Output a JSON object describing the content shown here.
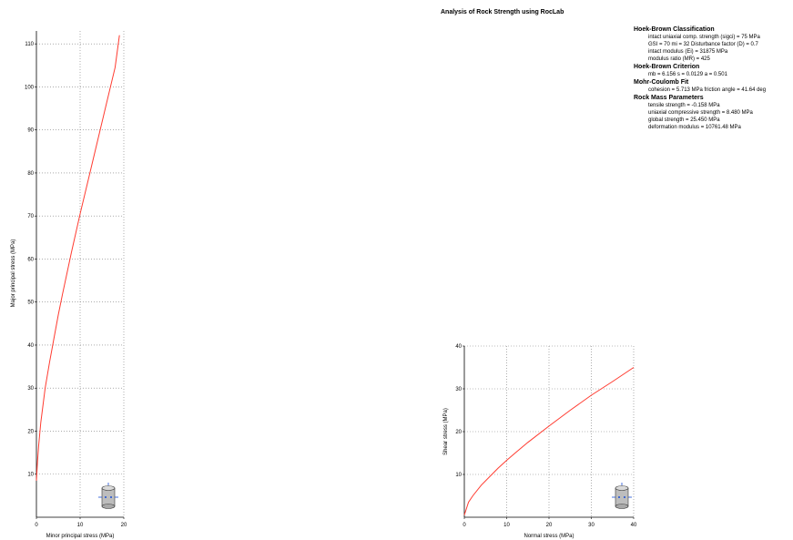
{
  "title": "Analysis of Rock Strength using RocLab",
  "info": {
    "sections": [
      {
        "title": "Hoek-Brown Classification",
        "lines": [
          "intact uniaxial comp. strength (sigci) = 75 MPa",
          "GSI = 70    mi = 32    Disturbance factor (D) = 0.7",
          "intact modulus (Ei) = 31875 MPa",
          "modulus ratio (MR) = 425"
        ]
      },
      {
        "title": "Hoek-Brown Criterion",
        "lines": [
          "mb = 6.156    s = 0.0129    a = 0.501"
        ]
      },
      {
        "title": "Mohr-Coulomb Fit",
        "lines": [
          "cohesion = 5.713 MPa    friction angle = 41.64 deg"
        ]
      },
      {
        "title": "Rock Mass Parameters",
        "lines": [
          "tensile strength = -0.158 MPa",
          "uniaxial compressive strength = 8.480 MPa",
          "global strength = 25.450 MPa",
          "deformation modulus = 10761.48 MPa"
        ]
      }
    ]
  },
  "colors": {
    "curve": "#ff3b30",
    "grid": "#7a7a7a",
    "icon_glyph": "#1a4fd6"
  },
  "icons": {
    "chart1": "triaxial-cylinder-icon",
    "chart2": "shear-cylinder-icon"
  },
  "chart_data": [
    {
      "type": "line",
      "title": "",
      "xlabel": "Minor principal stress (MPa)",
      "ylabel": "Major principal stress (MPa)",
      "xlim": [
        0,
        20
      ],
      "ylim": [
        0,
        113
      ],
      "xticks": [
        0,
        10,
        20
      ],
      "yticks": [
        10,
        20,
        30,
        40,
        50,
        60,
        70,
        80,
        90,
        100,
        110
      ],
      "grid": true,
      "series": [
        {
          "x": [
            0,
            0.25,
            0.5,
            1,
            2,
            3,
            4,
            5,
            6,
            8,
            10,
            12,
            14,
            16,
            18,
            19
          ],
          "y": [
            8.5,
            13,
            16.5,
            22,
            30,
            36,
            41.5,
            47,
            52,
            61.5,
            70.5,
            79,
            87.5,
            96,
            104.5,
            112
          ]
        }
      ]
    },
    {
      "type": "line",
      "title": "",
      "xlabel": "Normal stress (MPa)",
      "ylabel": "Shear stress (MPa)",
      "xlim": [
        0,
        40
      ],
      "ylim": [
        0,
        40
      ],
      "xticks": [
        0,
        10,
        20,
        30,
        40
      ],
      "yticks": [
        10,
        20,
        30,
        40
      ],
      "grid": true,
      "series": [
        {
          "x": [
            0,
            1,
            2,
            4,
            6,
            8,
            10,
            12,
            15,
            20,
            25,
            30,
            35,
            40
          ],
          "y": [
            0.5,
            3.5,
            5,
            7.5,
            9.5,
            11.5,
            13.3,
            15,
            17.5,
            21.3,
            25,
            28.5,
            31.7,
            35
          ]
        }
      ]
    }
  ]
}
